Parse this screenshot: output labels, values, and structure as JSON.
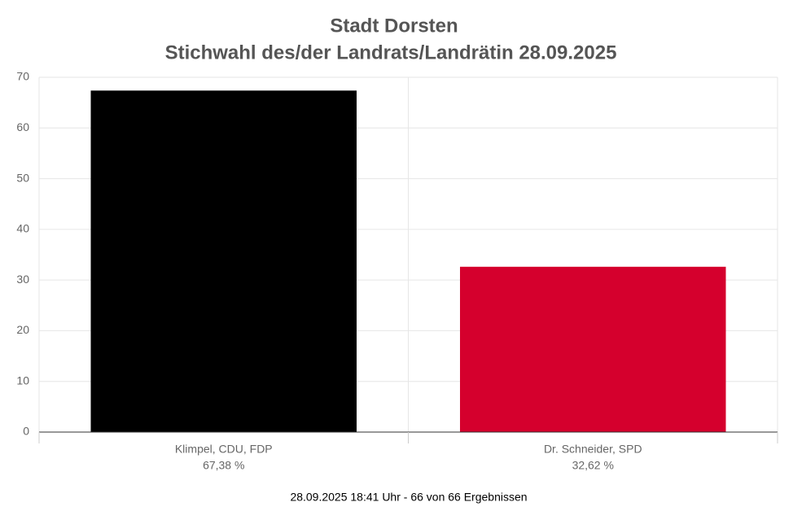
{
  "chart_data": {
    "type": "bar",
    "title": "Stadt Dorsten",
    "subtitle": "Stichwahl des/der Landrats/Landrätin 28.09.2025",
    "categories": [
      "Klimpel, CDU, FDP",
      "Dr. Schneider, SPD"
    ],
    "values": [
      67.38,
      32.62
    ],
    "value_labels": [
      "67,38 %",
      "32,62 %"
    ],
    "colors": [
      "#000000",
      "#d5002d"
    ],
    "ylim": [
      0,
      70
    ],
    "yticks": [
      0,
      10,
      20,
      30,
      40,
      50,
      60,
      70
    ],
    "grid": true,
    "footnote": "28.09.2025 18:41 Uhr - 66 von 66 Ergebnissen"
  }
}
